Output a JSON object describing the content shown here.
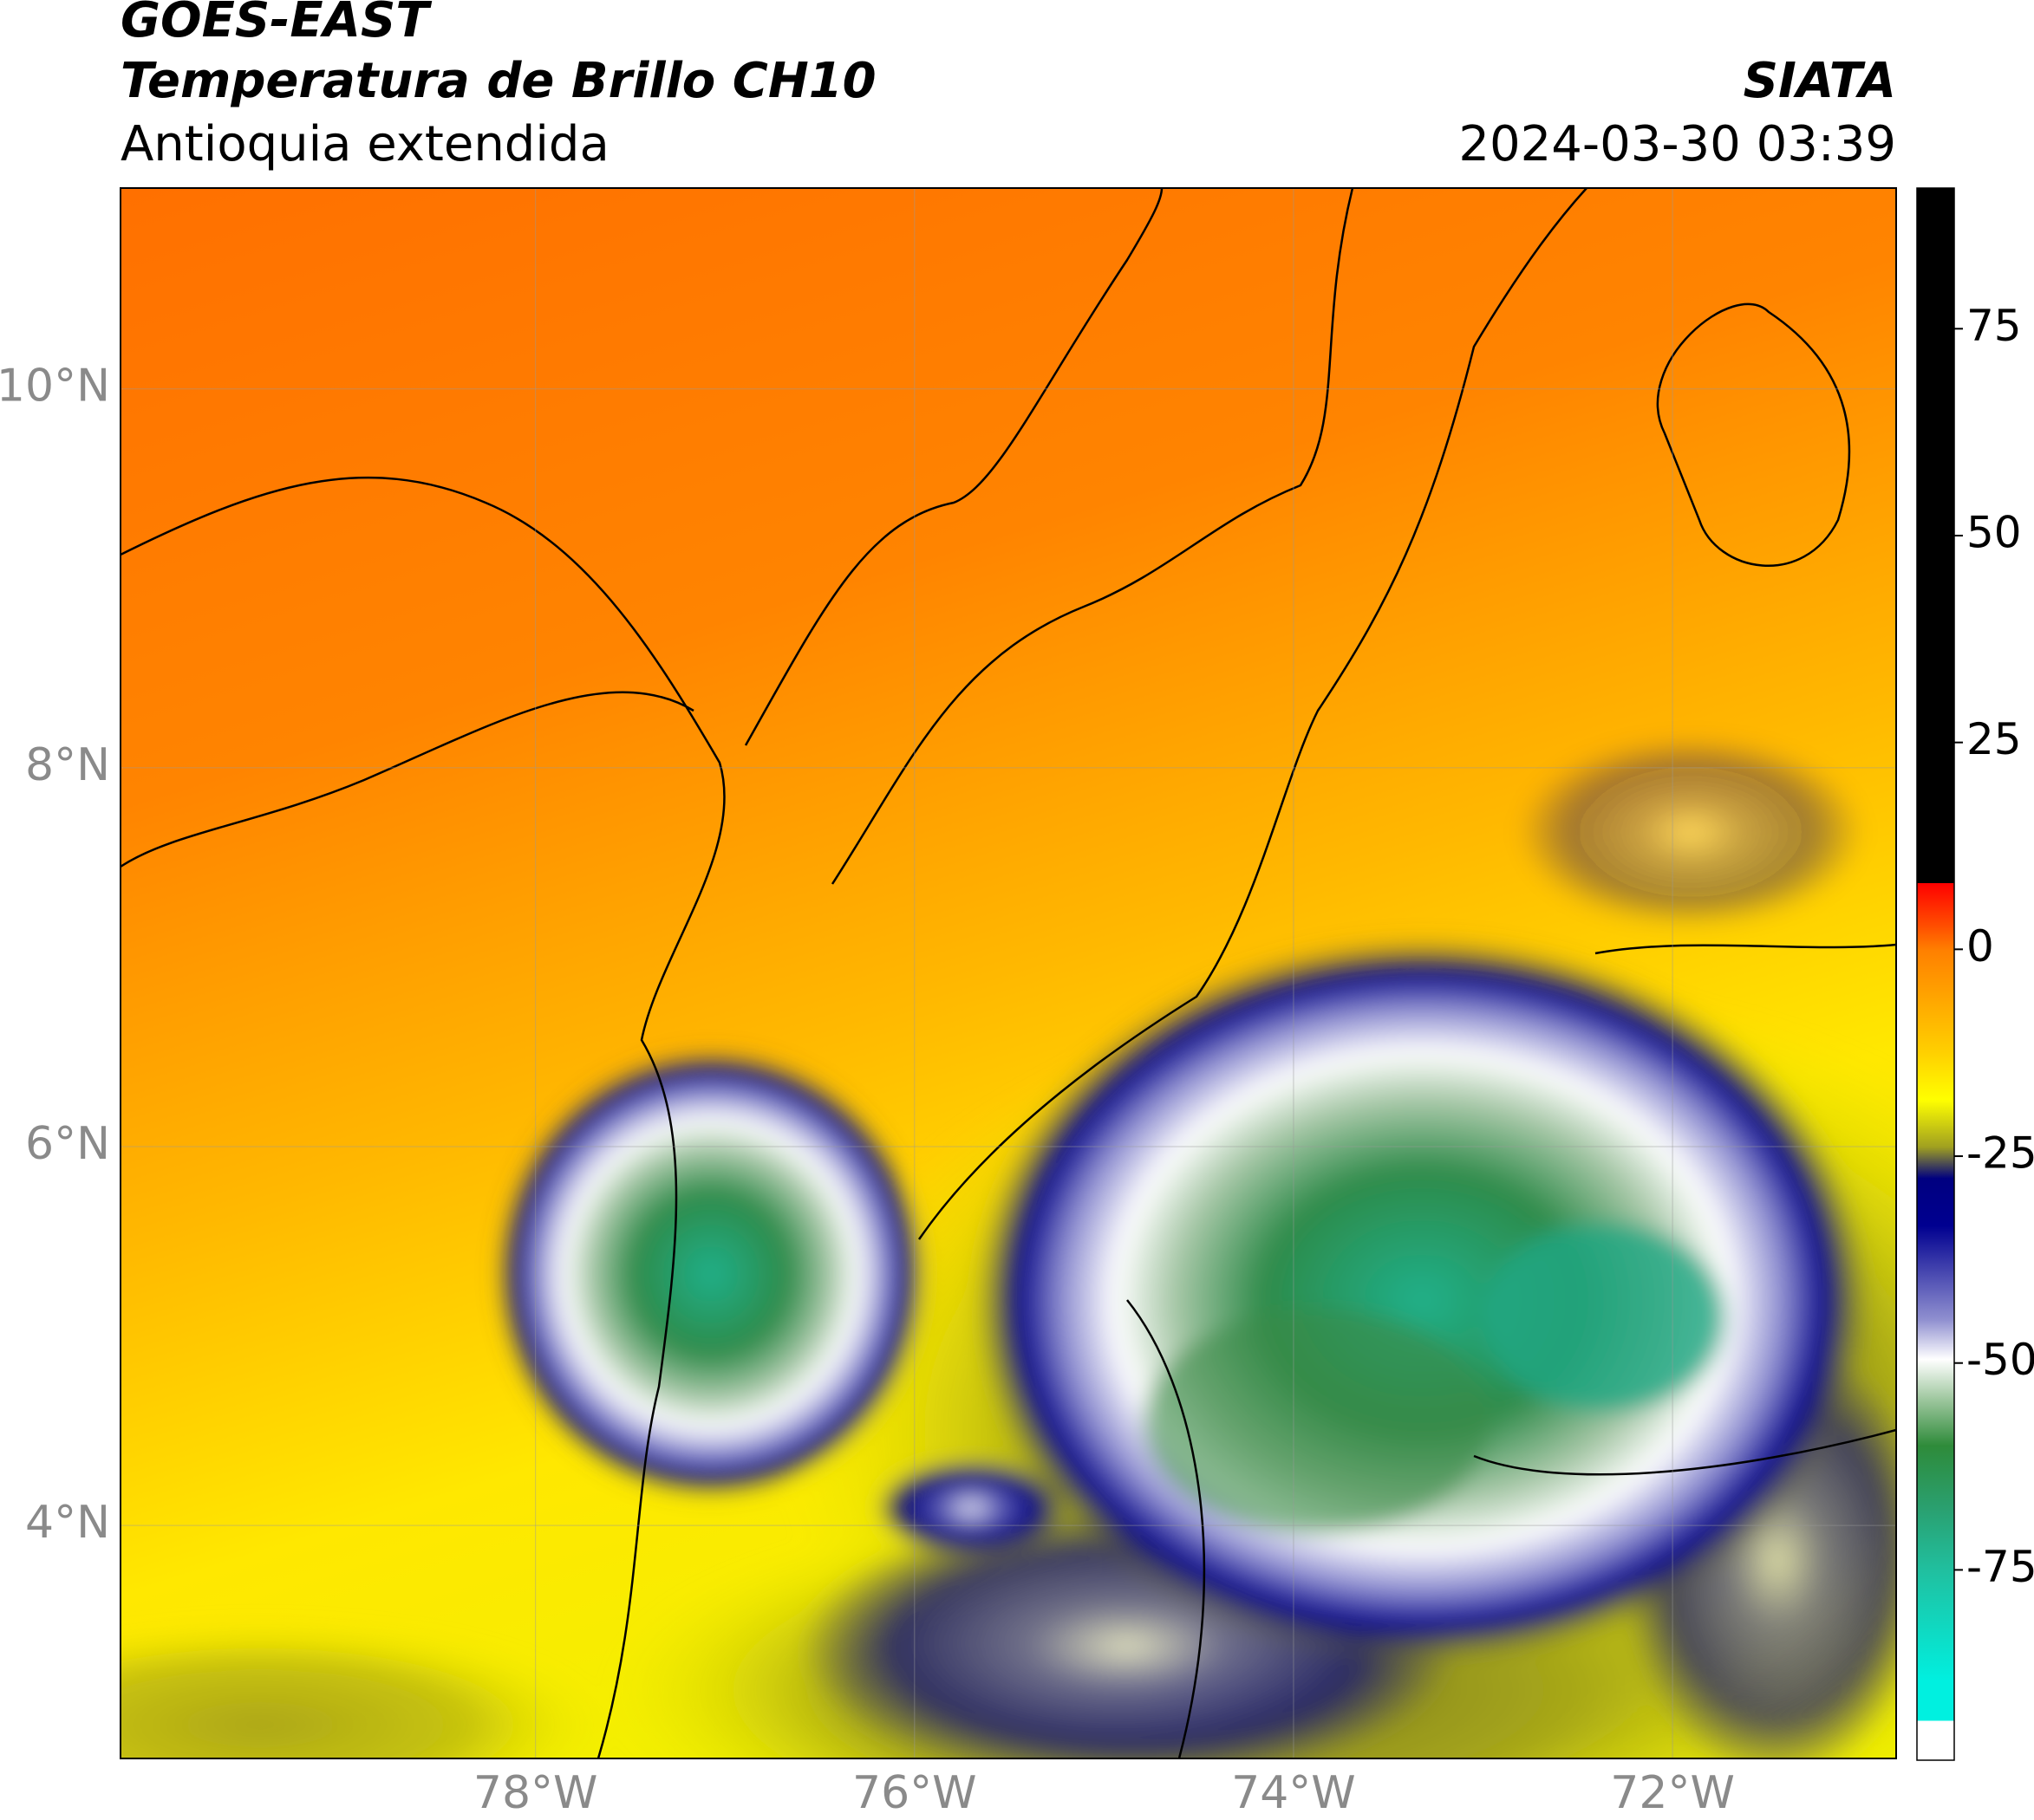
{
  "header": {
    "line1": "GOES-EAST",
    "line2": "Temperatura de Brillo CH10",
    "line3": "Antioquia extendida",
    "source": "SIATA",
    "timestamp": "2024-03-30 03:39"
  },
  "map": {
    "xlim": [
      -80.19,
      -70.82
    ],
    "ylim": [
      2.77,
      11.06
    ],
    "xticks": [
      {
        "value": -78,
        "label": "78°W"
      },
      {
        "value": -76,
        "label": "76°W"
      },
      {
        "value": -74,
        "label": "74°W"
      },
      {
        "value": -72,
        "label": "72°W"
      }
    ],
    "yticks": [
      {
        "value": 10,
        "label": "10°N"
      },
      {
        "value": 8,
        "label": "8°N"
      },
      {
        "value": 6,
        "label": "6°N"
      },
      {
        "value": 4,
        "label": "4°N"
      }
    ],
    "grid": true
  },
  "colorbar": {
    "lim": [
      -98,
      92
    ],
    "ticks": [
      75,
      50,
      25,
      0,
      -25,
      -50,
      -75
    ]
  }
}
